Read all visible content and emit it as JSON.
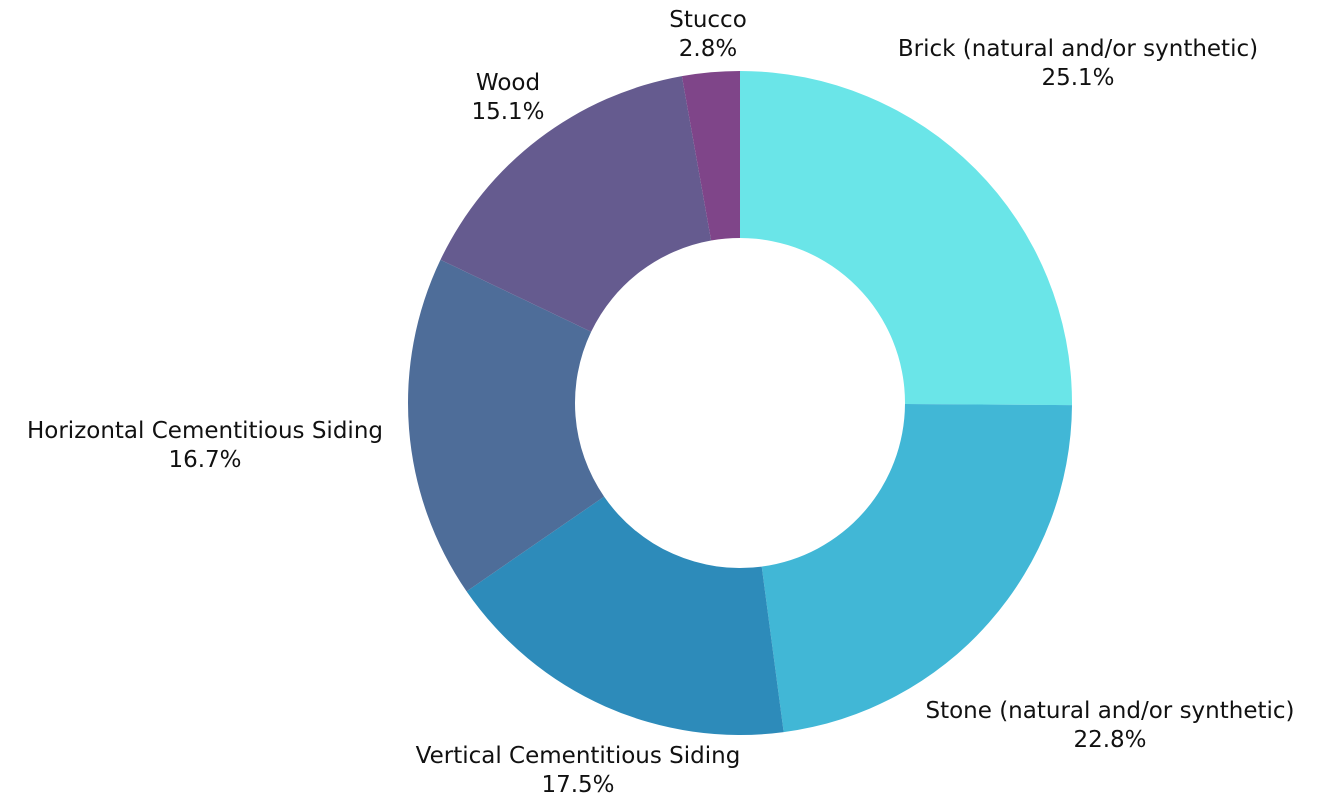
{
  "chart_data": {
    "type": "pie",
    "variant": "donut",
    "title": "",
    "legend": "none",
    "slices": [
      {
        "label": "Brick (natural and/or synthetic)",
        "value": 25.1,
        "value_label": "25.1%",
        "color": "#6ae5e8"
      },
      {
        "label": "Stone (natural and/or synthetic)",
        "value": 22.8,
        "value_label": "22.8%",
        "color": "#41b7d6"
      },
      {
        "label": "Vertical Cementitious Siding",
        "value": 17.5,
        "value_label": "17.5%",
        "color": "#2d8bba"
      },
      {
        "label": "Horizontal Cementitious Siding",
        "value": 16.7,
        "value_label": "16.7%",
        "color": "#4e6d99"
      },
      {
        "label": "Wood",
        "value": 15.1,
        "value_label": "15.1%",
        "color": "#655b8f"
      },
      {
        "label": "Stucco",
        "value": 2.8,
        "value_label": "2.8%",
        "color": "#7f4589"
      }
    ]
  }
}
